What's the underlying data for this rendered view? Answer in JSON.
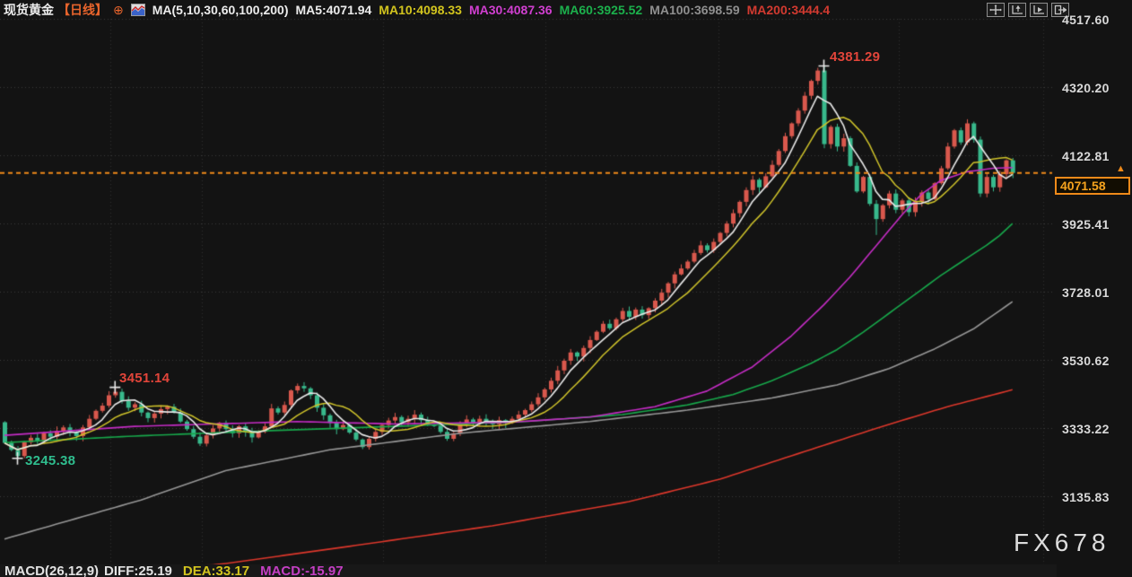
{
  "header": {
    "symbol": "现货黄金",
    "period": "【日线】",
    "add_indicator": "⊕",
    "ma_config": "MA(5,10,30,60,100,200)",
    "ma5": "MA5:4071.94",
    "ma10": "MA10:4098.33",
    "ma30": "MA30:4087.36",
    "ma60": "MA60:3925.52",
    "ma100": "MA100:3698.59",
    "ma200": "MA200:3444.4"
  },
  "footer": {
    "macd_config": "MACD(26,12,9)",
    "diff": "DIFF:25.19",
    "dea": "DEA:33.17",
    "macd": "MACD:-15.97"
  },
  "watermark": "FX678",
  "chart_data": {
    "type": "candlestick",
    "title": "现货黄金 日线",
    "y_axis": {
      "labels": [
        "4517.60",
        "4320.20",
        "4122.81",
        "3925.41",
        "3728.01",
        "3530.62",
        "3333.22",
        "3135.83"
      ],
      "prices": [
        4517.6,
        4320.2,
        4122.81,
        3925.41,
        3728.01,
        3530.62,
        3333.22,
        3135.83
      ]
    },
    "current_price": {
      "value": 4071.58,
      "label": "4071.58"
    },
    "first_open": 3350,
    "closes": [
      3290,
      3270,
      3252,
      3292,
      3305,
      3295,
      3318,
      3308,
      3325,
      3335,
      3322,
      3310,
      3335,
      3360,
      3383,
      3398,
      3428,
      3438,
      3412,
      3392,
      3402,
      3378,
      3362,
      3375,
      3388,
      3395,
      3378,
      3352,
      3330,
      3308,
      3288,
      3312,
      3332,
      3348,
      3330,
      3318,
      3338,
      3322,
      3306,
      3322,
      3338,
      3390,
      3378,
      3400,
      3442,
      3455,
      3448,
      3428,
      3392,
      3370,
      3348,
      3330,
      3342,
      3320,
      3300,
      3278,
      3302,
      3322,
      3342,
      3355,
      3365,
      3350,
      3360,
      3372,
      3356,
      3342,
      3340,
      3322,
      3302,
      3318,
      3345,
      3358,
      3348,
      3360,
      3352,
      3344,
      3356,
      3348,
      3360,
      3372,
      3385,
      3402,
      3422,
      3445,
      3470,
      3500,
      3528,
      3552,
      3540,
      3565,
      3588,
      3612,
      3635,
      3622,
      3648,
      3672,
      3655,
      3676,
      3660,
      3680,
      3702,
      3725,
      3752,
      3778,
      3795,
      3815,
      3840,
      3862,
      3848,
      3872,
      3898,
      3925,
      3955,
      3988,
      4022,
      4052,
      4030,
      4062,
      4095,
      4135,
      4178,
      4215,
      4252,
      4295,
      4338,
      4368,
      4155,
      4205,
      4148,
      4172,
      4092,
      4018,
      4060,
      3982,
      3938,
      3978,
      4012,
      3965,
      3992,
      3958,
      3988,
      4015,
      3996,
      4042,
      4085,
      4148,
      4195,
      4160,
      4215,
      4168,
      4012,
      4060,
      4030,
      4068,
      4108,
      4071.58
    ],
    "wick_overrides": {
      "2": {
        "low": 3245.38
      },
      "17": {
        "high": 3451.14
      },
      "126": {
        "high": 4381.29
      },
      "134": {
        "low": 3892
      }
    },
    "extremes": [
      {
        "index": 126,
        "price": 4381.29,
        "text": "4381.29",
        "kind": "high"
      },
      {
        "index": 17,
        "price": 3451.14,
        "text": "3451.14",
        "kind": "high"
      },
      {
        "index": 2,
        "price": 3245.38,
        "text": "3245.38",
        "kind": "low"
      }
    ],
    "computed_ma_periods": [
      10,
      5
    ],
    "ma_overlays": {
      "ma30": [
        [
          0,
          3312
        ],
        [
          20,
          3338
        ],
        [
          45,
          3352
        ],
        [
          60,
          3345
        ],
        [
          78,
          3350
        ],
        [
          90,
          3365
        ],
        [
          100,
          3395
        ],
        [
          108,
          3440
        ],
        [
          115,
          3510
        ],
        [
          121,
          3600
        ],
        [
          126,
          3690
        ],
        [
          130,
          3770
        ],
        [
          134,
          3860
        ],
        [
          138,
          3950
        ],
        [
          141,
          4010
        ],
        [
          144,
          4050
        ],
        [
          148,
          4075
        ],
        [
          152,
          4085
        ],
        [
          155,
          4087
        ]
      ],
      "ma60": [
        [
          0,
          3291
        ],
        [
          20,
          3310
        ],
        [
          40,
          3325
        ],
        [
          60,
          3338
        ],
        [
          80,
          3352
        ],
        [
          95,
          3372
        ],
        [
          105,
          3400
        ],
        [
          112,
          3430
        ],
        [
          118,
          3470
        ],
        [
          124,
          3520
        ],
        [
          128,
          3560
        ],
        [
          132,
          3610
        ],
        [
          136,
          3665
        ],
        [
          140,
          3720
        ],
        [
          144,
          3775
        ],
        [
          148,
          3825
        ],
        [
          151,
          3862
        ],
        [
          153,
          3890
        ],
        [
          155,
          3925
        ]
      ],
      "ma100": [
        [
          0,
          3012
        ],
        [
          21,
          3125
        ],
        [
          34,
          3210
        ],
        [
          50,
          3270
        ],
        [
          70,
          3318
        ],
        [
          90,
          3352
        ],
        [
          105,
          3385
        ],
        [
          118,
          3420
        ],
        [
          128,
          3458
        ],
        [
          136,
          3505
        ],
        [
          143,
          3562
        ],
        [
          149,
          3620
        ],
        [
          155,
          3699
        ]
      ],
      "ma200": [
        [
          0,
          2865
        ],
        [
          20,
          2910
        ],
        [
          34,
          2941
        ],
        [
          55,
          2996
        ],
        [
          75,
          3050
        ],
        [
          96,
          3120
        ],
        [
          110,
          3185
        ],
        [
          123,
          3265
        ],
        [
          135,
          3338
        ],
        [
          145,
          3395
        ],
        [
          155,
          3444
        ]
      ]
    },
    "colors": {
      "up": "#d9584d",
      "down": "#38b98c",
      "ma5": "#e8e8e8",
      "ma10": "#cfc32a",
      "ma30": "#c42cc4",
      "ma60": "#17a84b",
      "ma100": "#969696",
      "ma200": "#dc372b",
      "grid": "#3a3a3a",
      "vgrid": "#2e2e2e",
      "dashed_line": "#ef8a1a",
      "cross": "#e8e8e8",
      "background": "#131313"
    },
    "legend_position": "top",
    "grid": true
  }
}
